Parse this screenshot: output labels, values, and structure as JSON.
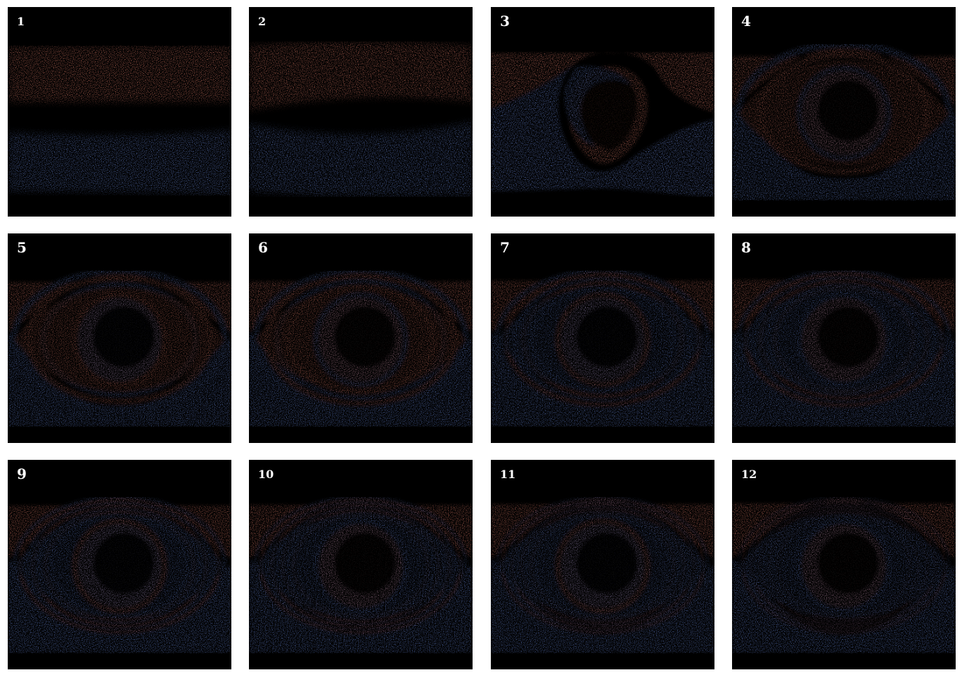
{
  "figure": {
    "background": "#000000",
    "colors": {
      "upper_fluid": "#e8826e",
      "lower_fluid": "#6f8fe3"
    },
    "panels": [
      {
        "label": "1",
        "stage": 0
      },
      {
        "label": "2",
        "stage": 1
      },
      {
        "label": "3",
        "stage": 2
      },
      {
        "label": "4",
        "stage": 3
      },
      {
        "label": "5",
        "stage": 4
      },
      {
        "label": "6",
        "stage": 5
      },
      {
        "label": "7",
        "stage": 6
      },
      {
        "label": "8",
        "stage": 7
      },
      {
        "label": "9",
        "stage": 8
      },
      {
        "label": "10",
        "stage": 9
      },
      {
        "label": "11",
        "stage": 10
      },
      {
        "label": "12",
        "stage": 11
      }
    ]
  }
}
